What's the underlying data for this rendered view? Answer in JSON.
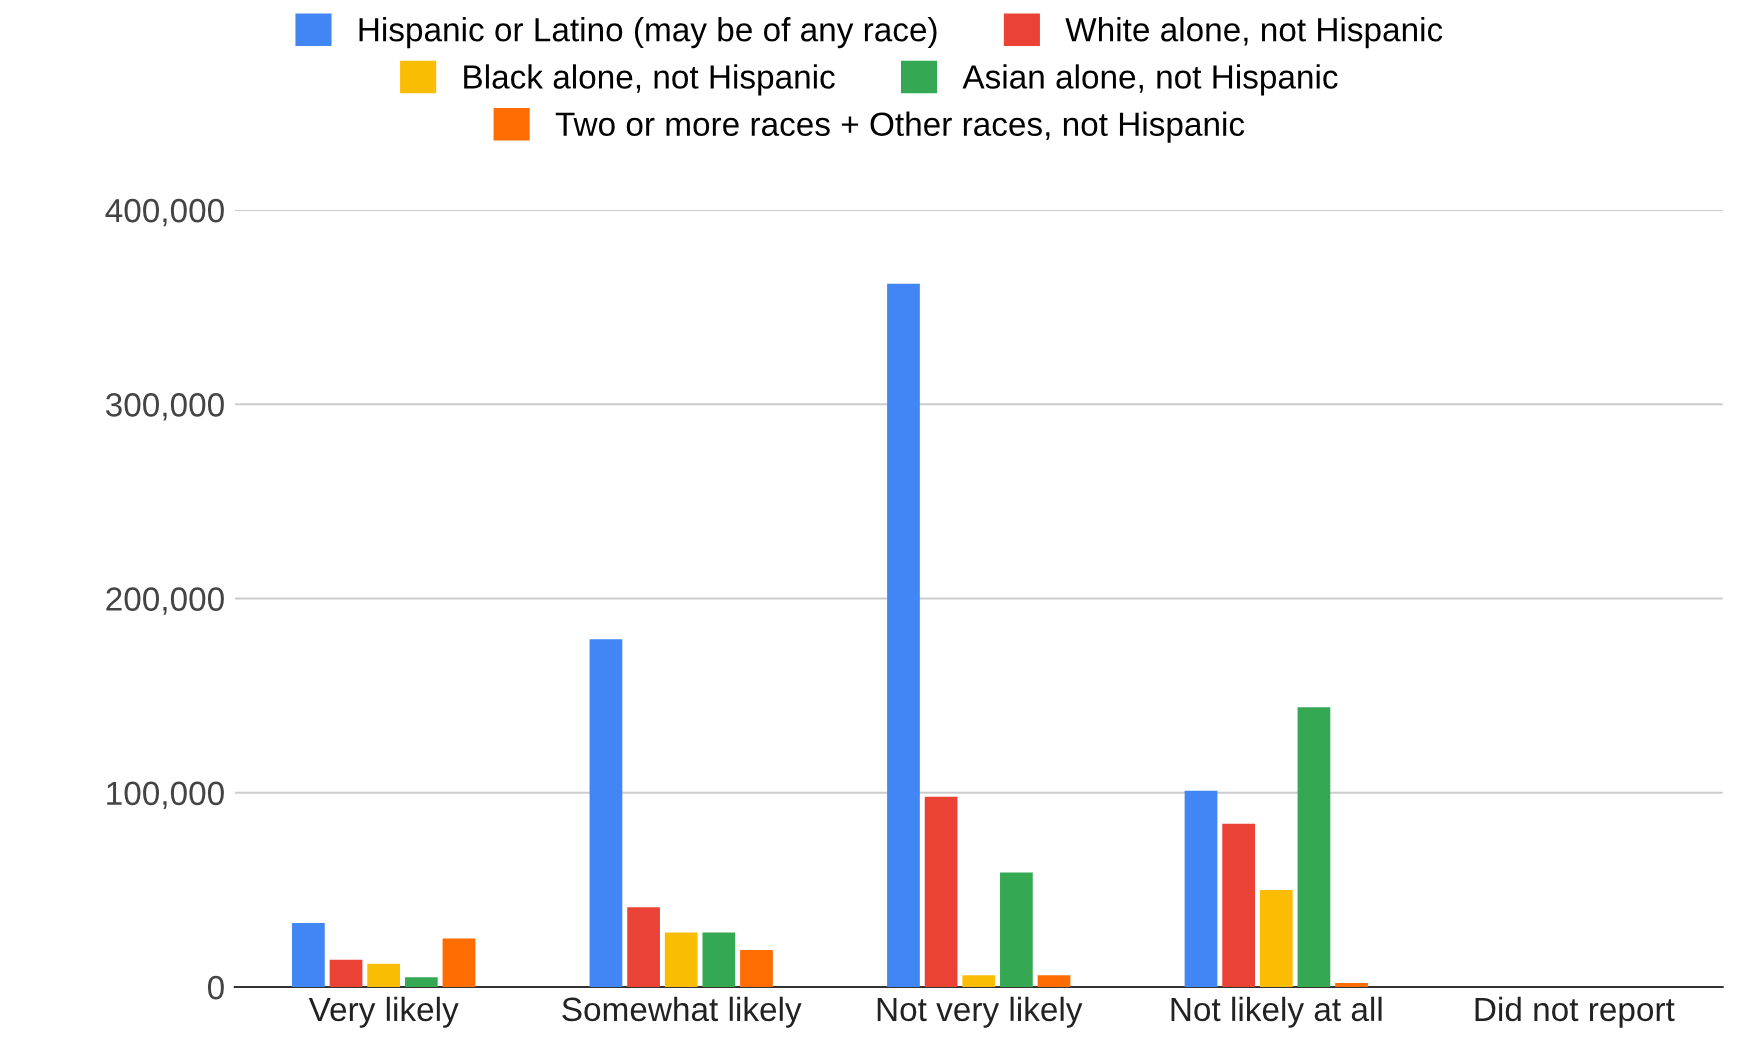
{
  "chart_data": {
    "type": "bar",
    "categories": [
      "Very likely",
      "Somewhat likely",
      "Not very likely",
      "Not likely at all",
      "Did not report"
    ],
    "series": [
      {
        "name": "Hispanic or Latino (may be of any race)",
        "color": "#4285f4",
        "values": [
          33000,
          179000,
          362000,
          101000,
          0
        ]
      },
      {
        "name": "White alone, not Hispanic",
        "color": "#ea4335",
        "values": [
          14000,
          41000,
          98000,
          84000,
          0
        ]
      },
      {
        "name": "Black alone, not Hispanic",
        "color": "#fbbc04",
        "values": [
          12000,
          28000,
          6000,
          50000,
          0
        ]
      },
      {
        "name": "Asian alone, not Hispanic",
        "color": "#34a853",
        "values": [
          5000,
          28000,
          59000,
          144000,
          0
        ]
      },
      {
        "name": "Two or more races + Other races, not Hispanic",
        "color": "#ff6d01",
        "values": [
          25000,
          19000,
          6000,
          2000,
          0
        ]
      }
    ],
    "ylim": [
      0,
      400000
    ],
    "yticks": [
      {
        "value": 0,
        "label": "0"
      },
      {
        "value": 100000,
        "label": "100,000"
      },
      {
        "value": 200000,
        "label": "200,000"
      },
      {
        "value": 300000,
        "label": "300,000"
      },
      {
        "value": 400000,
        "label": "400,000"
      }
    ],
    "grid": "y",
    "legend": "top"
  }
}
